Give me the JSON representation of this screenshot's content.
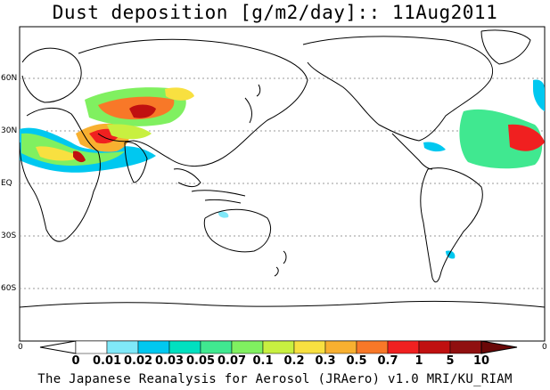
{
  "title": "Dust deposition [g/m2/day]:: 11Aug2011",
  "lat_labels": [
    "60N",
    "30N",
    "EQ",
    "30S",
    "60S"
  ],
  "lon_edge_labels": {
    "left": "0",
    "right": "0"
  },
  "colorbar": {
    "labels": [
      "0",
      "0.01",
      "0.02",
      "0.03",
      "0.05",
      "0.07",
      "0.1",
      "0.2",
      "0.3",
      "0.5",
      "0.7",
      "1",
      "5",
      "10"
    ],
    "colors": [
      "#ffffff",
      "#ffffff",
      "#80e8f8",
      "#00c8f0",
      "#00e0c0",
      "#40e890",
      "#80f060",
      "#c8f040",
      "#f8e040",
      "#f8b030",
      "#f87828",
      "#f02020",
      "#c01010",
      "#901010",
      "#6a0808"
    ]
  },
  "credit": "The Japanese Reanalysis for Aerosol (JRAero) v1.0 MRI/KU_RIAM"
}
